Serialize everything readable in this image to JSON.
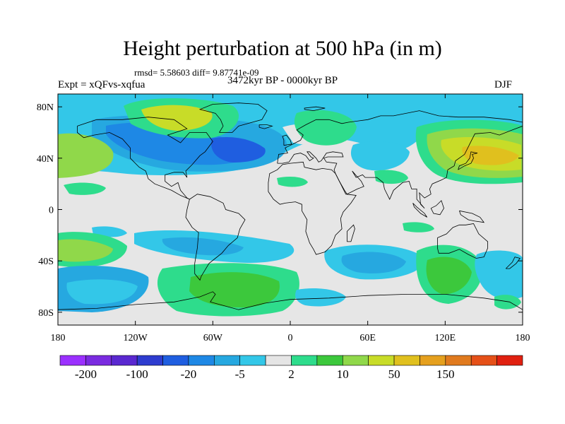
{
  "title": "Height perturbation at 500 hPa (in m)",
  "stats": "rmsd= 5.58603 diff= 9.87741e-09",
  "experiment": "Expt = xQFvs-xqfua",
  "period": "3472kyr BP - 0000kyr BP",
  "season": "DJF",
  "lat_ticks": [
    {
      "label": "80N",
      "lat": 80
    },
    {
      "label": "40N",
      "lat": 40
    },
    {
      "label": "0",
      "lat": 0
    },
    {
      "label": "40S",
      "lat": -40
    },
    {
      "label": "80S",
      "lat": -80
    }
  ],
  "lon_ticks": [
    {
      "label": "180",
      "lon": -180
    },
    {
      "label": "120W",
      "lon": -120
    },
    {
      "label": "60W",
      "lon": -60
    },
    {
      "label": "0",
      "lon": 0
    },
    {
      "label": "60E",
      "lon": 60
    },
    {
      "label": "120E",
      "lon": 120
    },
    {
      "label": "180",
      "lon": 180
    }
  ],
  "colorbar": {
    "colors": [
      "#9b30ff",
      "#7a2be0",
      "#5a28d0",
      "#2e3ccf",
      "#1f5ee0",
      "#1e88e5",
      "#26a8e0",
      "#33c7e8",
      "#e5e5e5",
      "#2edc8c",
      "#3cc83c",
      "#90d84a",
      "#c8dc28",
      "#e0c01e",
      "#e5a01e",
      "#e07a1e",
      "#e55018",
      "#e02010"
    ],
    "labels": [
      {
        "text": "-200",
        "boundary": 1
      },
      {
        "text": "-100",
        "boundary": 3
      },
      {
        "text": "-20",
        "boundary": 5
      },
      {
        "text": "-5",
        "boundary": 7
      },
      {
        "text": "2",
        "boundary": 9
      },
      {
        "text": "10",
        "boundary": 11
      },
      {
        "text": "50",
        "boundary": 13
      },
      {
        "text": "150",
        "boundary": 15
      }
    ]
  },
  "palette": {
    "background": "#e6e6e6",
    "blue_dark": "#1f5ee0",
    "blue_mid": "#1e88e5",
    "blue_light": "#26a8e0",
    "cyan": "#33c7e8",
    "teal": "#2edc8c",
    "green": "#3cc83c",
    "yellow_green": "#90d84a",
    "olive": "#c8dc28",
    "gold": "#e0c01e",
    "orange": "#e5a01e"
  }
}
